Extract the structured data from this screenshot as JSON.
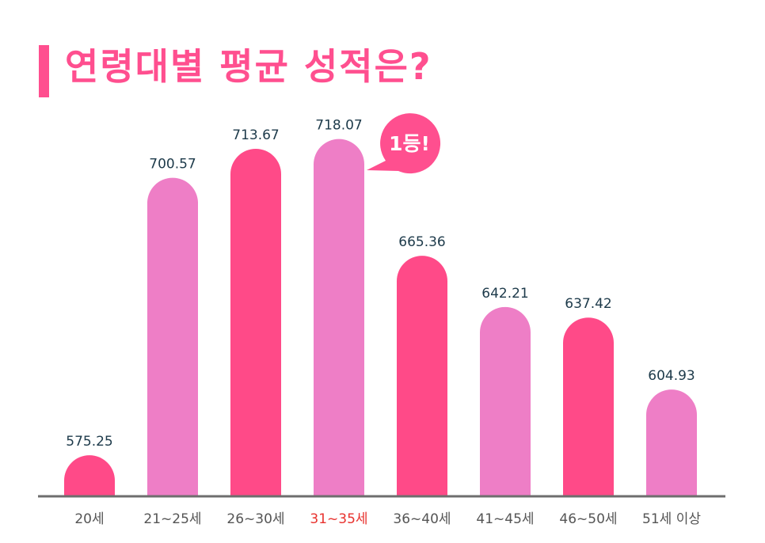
{
  "title": "연령대별 평균 성적은?",
  "badge": "1등!",
  "colors": {
    "accent": "#ff4f8f",
    "bar_dark": "#ff4a88",
    "bar_light": "#ee7ec6",
    "highlight_label": "#e8322e",
    "baseline": "#6e6e6e"
  },
  "chart_data": {
    "type": "bar",
    "title": "연령대별 평균 성적은?",
    "categories": [
      "20세",
      "21~25세",
      "26~30세",
      "31~35세",
      "36~40세",
      "41~45세",
      "46~50세",
      "51세 이상"
    ],
    "values": [
      575.25,
      700.57,
      713.67,
      718.07,
      665.36,
      642.21,
      637.42,
      604.93
    ],
    "value_labels": [
      "575.25",
      "700.57",
      "713.67",
      "718.07",
      "665.36",
      "642.21",
      "637.42",
      "604.93"
    ],
    "highlight_category": "31~35세",
    "annotation": "1등!",
    "xlabel": "",
    "ylabel": "",
    "grid": false,
    "legend": "none"
  }
}
